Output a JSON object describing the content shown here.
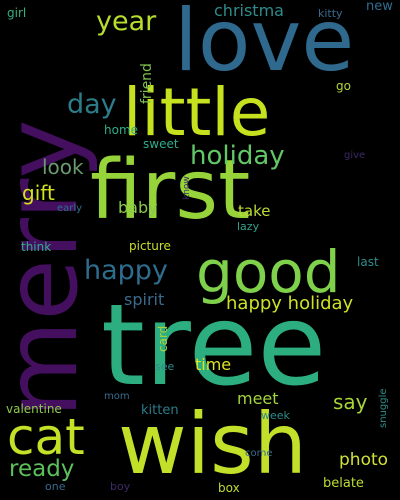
{
  "words": [
    {
      "text": "merry",
      "color": "#450f5f"
    },
    {
      "text": "love",
      "color": "#2f6a8e"
    },
    {
      "text": "little",
      "color": "#c6e21f"
    },
    {
      "text": "first",
      "color": "#96d43a"
    },
    {
      "text": "good",
      "color": "#7fd04a"
    },
    {
      "text": "tree",
      "color": "#2dae80"
    },
    {
      "text": "wish",
      "color": "#c2e029"
    },
    {
      "text": "cat",
      "color": "#c4e128"
    },
    {
      "text": "year",
      "color": "#b7de2c"
    },
    {
      "text": "christma",
      "color": "#2f8c8a"
    },
    {
      "text": "day",
      "color": "#2d7c8a"
    },
    {
      "text": "holiday",
      "color": "#61c767"
    },
    {
      "text": "happy",
      "color": "#2f6d8e"
    },
    {
      "text": "happy holiday",
      "color": "#cde225"
    },
    {
      "text": "look",
      "color": "#6a9a6f"
    },
    {
      "text": "gift",
      "color": "#d2e21c"
    },
    {
      "text": "baby",
      "color": "#89c94c"
    },
    {
      "text": "take",
      "color": "#bcdc34"
    },
    {
      "text": "spirit",
      "color": "#3a6a8c"
    },
    {
      "text": "picture",
      "color": "#c9df2e"
    },
    {
      "text": "ready",
      "color": "#5dc05c"
    },
    {
      "text": "time",
      "color": "#dde621"
    },
    {
      "text": "meet",
      "color": "#a3d43c"
    },
    {
      "text": "say",
      "color": "#a8d638"
    },
    {
      "text": "photo",
      "color": "#d1e23a"
    },
    {
      "text": "valentine",
      "color": "#8ec94e"
    },
    {
      "text": "kitten",
      "color": "#2d7c8a"
    },
    {
      "text": "friend",
      "color": "#7ec24f"
    },
    {
      "text": "home",
      "color": "#2fae8a"
    },
    {
      "text": "sweet",
      "color": "#2fae8a"
    },
    {
      "text": "think",
      "color": "#2fae8a"
    },
    {
      "text": "card",
      "color": "#aed43c"
    },
    {
      "text": "girl",
      "color": "#35b07e"
    },
    {
      "text": "kitty",
      "color": "#3a6a8c"
    },
    {
      "text": "new",
      "color": "#2f6d8e"
    },
    {
      "text": "go",
      "color": "#b3d63a"
    },
    {
      "text": "give",
      "color": "#3d2a66"
    },
    {
      "text": "early",
      "color": "#2f6d8e"
    },
    {
      "text": "know",
      "color": "#3d2a66"
    },
    {
      "text": "lazy",
      "color": "#35a08a"
    },
    {
      "text": "last",
      "color": "#2f8c8a"
    },
    {
      "text": "see",
      "color": "#2f8c8a"
    },
    {
      "text": "mom",
      "color": "#3a6a8c"
    },
    {
      "text": "week",
      "color": "#2f8c8a"
    },
    {
      "text": "snuggle",
      "color": "#2f8c8a"
    },
    {
      "text": "come",
      "color": "#3a6a8c"
    },
    {
      "text": "one",
      "color": "#3a6a8c"
    },
    {
      "text": "boy",
      "color": "#3d2a66"
    },
    {
      "text": "box",
      "color": "#bcdc34"
    },
    {
      "text": "belate",
      "color": "#bcdc34"
    }
  ]
}
